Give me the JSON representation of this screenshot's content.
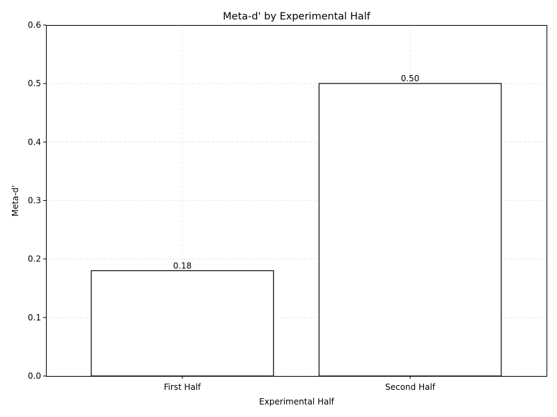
{
  "chart_data": {
    "type": "bar",
    "title": "Meta-d' by Experimental Half",
    "xlabel": "Experimental Half",
    "ylabel": "Meta-d'",
    "categories": [
      "First Half",
      "Second Half"
    ],
    "values": [
      0.18,
      0.5
    ],
    "value_labels": [
      "0.18",
      "0.50"
    ],
    "ylim": [
      0,
      0.6
    ],
    "yticks": [
      0.0,
      0.1,
      0.2,
      0.3,
      0.4,
      0.5,
      0.6
    ],
    "ytick_labels": [
      "0.0",
      "0.1",
      "0.2",
      "0.3",
      "0.4",
      "0.5",
      "0.6"
    ],
    "grid": true,
    "bar_fill": "#ffffff",
    "bar_edge": "#000000"
  }
}
